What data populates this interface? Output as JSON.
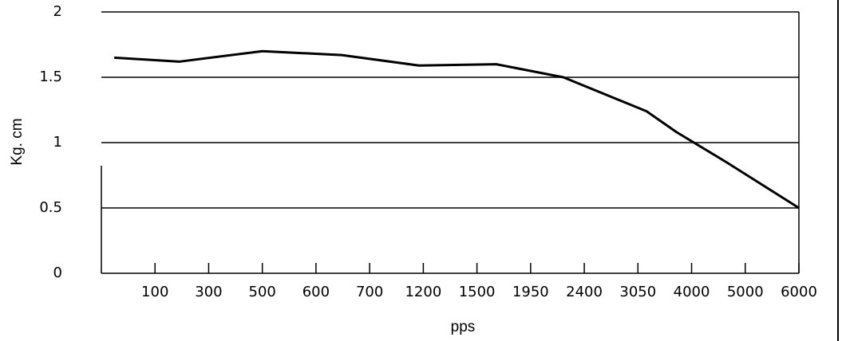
{
  "chart_data": {
    "type": "line",
    "y_label": "Kg. cm",
    "x_label": "pps",
    "xlim": [
      0,
      13
    ],
    "xticks": [
      {
        "value": 1,
        "label": "100"
      },
      {
        "value": 2,
        "label": "300"
      },
      {
        "value": 3,
        "label": "500"
      },
      {
        "value": 4,
        "label": "600"
      },
      {
        "value": 5,
        "label": "700"
      },
      {
        "value": 6,
        "label": "1200"
      },
      {
        "value": 7,
        "label": "1500"
      },
      {
        "value": 8,
        "label": "1950"
      },
      {
        "value": 9,
        "label": "2400"
      },
      {
        "value": 10,
        "label": "3050"
      },
      {
        "value": 11,
        "label": "4000"
      },
      {
        "value": 12,
        "label": "5000"
      },
      {
        "value": 13,
        "label": "6000"
      }
    ],
    "ylim": [
      0,
      2
    ],
    "yticks": [
      0,
      0.5,
      1,
      1.5,
      2
    ],
    "grid": true,
    "series": [
      {
        "color": "#000000",
        "x": [
          0.24,
          1.46,
          3.0,
          4.48,
          5.92,
          7.36,
          8.61,
          10.16,
          10.72,
          11.65,
          13
        ],
        "values": [
          1.65,
          1.62,
          1.7,
          1.67,
          1.59,
          1.6,
          1.5,
          1.24,
          1.08,
          0.85,
          0.5
        ]
      }
    ]
  }
}
